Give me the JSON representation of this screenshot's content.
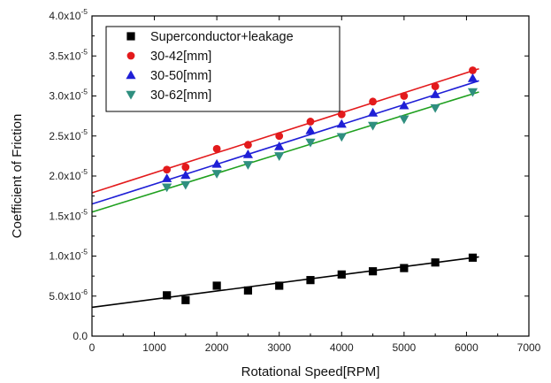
{
  "chart_data": {
    "type": "scatter",
    "xlabel": "Rotational Speed[RPM]",
    "ylabel": "Coefficient of Friction",
    "xlim": [
      0,
      7000
    ],
    "ylim": [
      0,
      4e-05
    ],
    "x_ticks": [
      0,
      1000,
      2000,
      3000,
      4000,
      5000,
      6000,
      7000
    ],
    "x_tick_labels": [
      "0",
      "1000",
      "2000",
      "3000",
      "4000",
      "5000",
      "6000",
      "7000"
    ],
    "y_ticks": [
      0,
      5e-06,
      1e-05,
      1.5e-05,
      2e-05,
      2.5e-05,
      3e-05,
      3.5e-05,
      4e-05
    ],
    "y_tick_labels": [
      {
        "mantissa": "0.0",
        "exp": ""
      },
      {
        "mantissa": "5.0x10",
        "exp": "-6"
      },
      {
        "mantissa": "1.0x10",
        "exp": "-5"
      },
      {
        "mantissa": "1.5x10",
        "exp": "-5"
      },
      {
        "mantissa": "2.0x10",
        "exp": "-5"
      },
      {
        "mantissa": "2.5x10",
        "exp": "-5"
      },
      {
        "mantissa": "3.0x10",
        "exp": "-5"
      },
      {
        "mantissa": "3.5x10",
        "exp": "-5"
      },
      {
        "mantissa": "4.0x10",
        "exp": "-5"
      }
    ],
    "grid": false,
    "legend_position": "top-left",
    "series": [
      {
        "name": "Superconductor+leakage",
        "marker": "square",
        "color": "#000000",
        "x": [
          1200,
          1500,
          2000,
          2500,
          3000,
          3500,
          4000,
          4500,
          5000,
          5500,
          6100
        ],
        "y": [
          5.1e-06,
          4.5e-06,
          6.3e-06,
          5.7e-06,
          6.3e-06,
          7e-06,
          7.7e-06,
          8.1e-06,
          8.5e-06,
          9.2e-06,
          9.8e-06
        ],
        "fit": {
          "x": [
            0,
            6200
          ],
          "y": [
            3.6e-06,
            9.9e-06
          ]
        }
      },
      {
        "name": "30-42[mm]",
        "marker": "circle",
        "color": "#e31a1c",
        "x": [
          1200,
          1500,
          2000,
          2500,
          3000,
          3500,
          4000,
          4500,
          5000,
          5500,
          6100
        ],
        "y": [
          2.08e-05,
          2.11e-05,
          2.34e-05,
          2.39e-05,
          2.5e-05,
          2.68e-05,
          2.77e-05,
          2.93e-05,
          3e-05,
          3.12e-05,
          3.32e-05
        ],
        "fit": {
          "x": [
            0,
            6200
          ],
          "y": [
            1.79e-05,
            3.34e-05
          ]
        }
      },
      {
        "name": "30-50[mm]",
        "marker": "triangle-up",
        "color": "#1f1fd6",
        "x": [
          1200,
          1500,
          2000,
          2500,
          3000,
          3500,
          4000,
          4500,
          5000,
          5500,
          6100
        ],
        "y": [
          1.97e-05,
          2.01e-05,
          2.15e-05,
          2.27e-05,
          2.37e-05,
          2.57e-05,
          2.65e-05,
          2.79e-05,
          2.88e-05,
          3.02e-05,
          3.22e-05
        ],
        "fit": {
          "x": [
            0,
            6200
          ],
          "y": [
            1.65e-05,
            3.19e-05
          ]
        }
      },
      {
        "name": "30-62[mm]",
        "marker": "triangle-down",
        "color": "#2f8f7f",
        "x": [
          1200,
          1500,
          2000,
          2500,
          3000,
          3500,
          4000,
          4500,
          5000,
          5500,
          6100
        ],
        "y": [
          1.86e-05,
          1.89e-05,
          2.03e-05,
          2.14e-05,
          2.25e-05,
          2.42e-05,
          2.49e-05,
          2.63e-05,
          2.71e-05,
          2.85e-05,
          3.05e-05
        ],
        "fit": {
          "x": [
            0,
            6200
          ],
          "y": [
            1.55e-05,
            3.05e-05
          ]
        },
        "fit_color": "#1fa01f"
      }
    ]
  }
}
